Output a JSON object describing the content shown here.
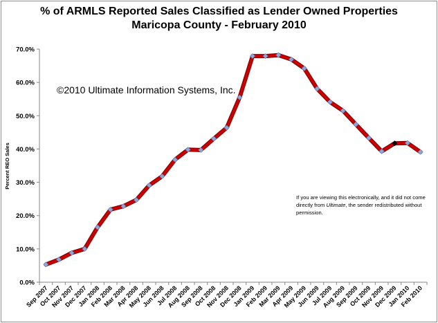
{
  "chart_data": {
    "type": "line",
    "title": "% of ARMLS Reported Sales Classified as Lender Owned Properties",
    "subtitle": "Maricopa County - February 2010",
    "ylabel": "Percent REO Sales",
    "xlabel": "",
    "ylim": [
      0,
      70
    ],
    "yticks": [
      "0.0%",
      "10.0%",
      "20.0%",
      "30.0%",
      "40.0%",
      "50.0%",
      "60.0%",
      "70.0%"
    ],
    "grid": false,
    "categories": [
      "Sep 2007",
      "Oct 2007",
      "Nov 2007",
      "Dec 2007",
      "Jan 2008",
      "Feb 2008",
      "Mar 2008",
      "Apr 2008",
      "May 2008",
      "Jun 2008",
      "Jul 2008",
      "Aug 2008",
      "Sep 2008",
      "Oct 2008",
      "Nov 2008",
      "Dec 2008",
      "Jan 2009",
      "Feb 2009",
      "Mar 2009",
      "Apr 2009",
      "May 2009",
      "Jun 2009",
      "Jul 2009",
      "Aug 2009",
      "Sep 2009",
      "Oct 2009",
      "Nov 2009",
      "Dec 2009",
      "Jan 2010",
      "Feb 2010"
    ],
    "series": [
      {
        "name": "",
        "values": [
          5.3,
          6.8,
          8.8,
          10.0,
          16.5,
          21.8,
          22.8,
          24.7,
          29.1,
          31.8,
          36.8,
          39.8,
          39.7,
          43.1,
          46.4,
          55.5,
          67.9,
          67.9,
          68.2,
          66.9,
          64.2,
          58.1,
          54.1,
          51.5,
          47.4,
          43.3,
          39.3,
          41.7,
          41.8,
          39.1
        ],
        "color": "#cc0000",
        "marker_color": "#8ea7d8"
      }
    ],
    "highlight_index": 27,
    "highlight_color": "#000000"
  },
  "annotations": {
    "copyright": "©2010 Ultimate Information Systems, Inc.",
    "note_before": "If you are viewing this electronically, and it did not come directly from ",
    "note_emph": "Ultimate",
    "note_after": ", the sender redistributed without permission."
  }
}
